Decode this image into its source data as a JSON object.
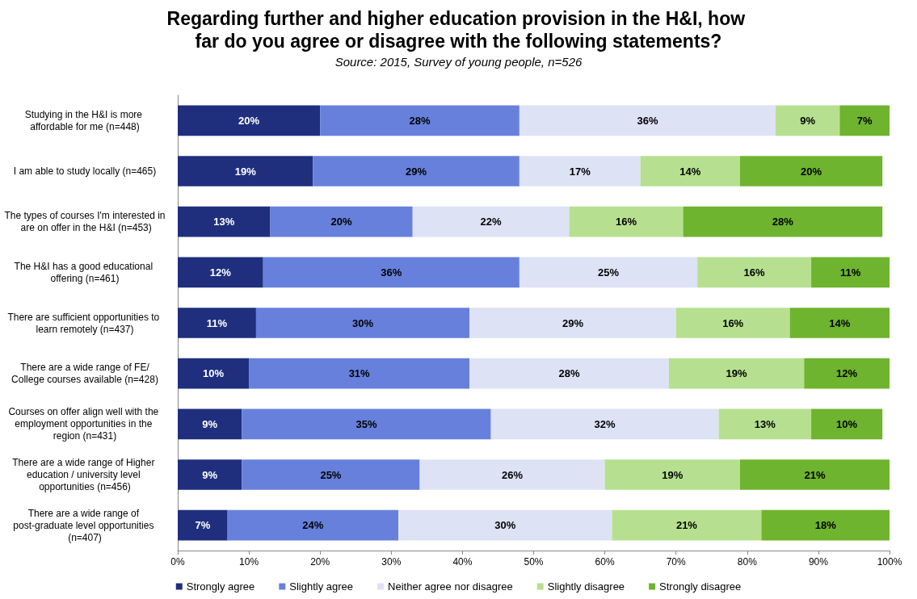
{
  "chart_data": {
    "type": "bar",
    "orientation": "horizontal",
    "stacked": true,
    "title": "Regarding further and higher education provision in the H&I, how far do you agree or disagree with the following statements?",
    "subtitle": "Source: 2015, Survey of young people, n=526",
    "categories": [
      "Studying in the H&I is more affordable for me (n=448)",
      "I am able to study locally (n=465)",
      "The types of courses I'm interested in are on offer in the H&I (n=453)",
      "The H&I has a good educational offering (n=461)",
      "There are sufficient opportunities to learn remotely (n=437)",
      "There are a wide range of FE/College courses available (n=428)",
      "Courses on offer align well with the employment opportunities in the region (n=431)",
      "There are a wide range of Higher education / university level opportunities (n=456)",
      "There are a wide range of post-graduate level opportunities (n=407)"
    ],
    "series": [
      {
        "name": "Strongly agree",
        "color": "#1f2f7e",
        "values": [
          20,
          19,
          13,
          12,
          11,
          10,
          9,
          9,
          7
        ],
        "value_labels": [
          "20%",
          "19%",
          "13%",
          "12%",
          "11%",
          "10%",
          "9%",
          "9%",
          "7%"
        ]
      },
      {
        "name": "Slightly agree",
        "color": "#6680dc",
        "values": [
          28,
          29,
          20,
          36,
          30,
          31,
          35,
          25,
          24
        ],
        "value_labels": [
          "28%",
          "29%",
          "20%",
          "36%",
          "30%",
          "31%",
          "35%",
          "25%",
          "24%"
        ]
      },
      {
        "name": "Neither agree nor disagree",
        "color": "#dde2f5",
        "values": [
          36,
          17,
          22,
          25,
          29,
          28,
          32,
          26,
          30
        ],
        "value_labels": [
          "36%",
          "17%",
          "22%",
          "25%",
          "29%",
          "28%",
          "32%",
          "26%",
          "30%"
        ]
      },
      {
        "name": "Slightly disagree",
        "color": "#b6e08f",
        "values": [
          9,
          14,
          16,
          16,
          16,
          19,
          13,
          19,
          21
        ],
        "value_labels": [
          "9%",
          "14%",
          "16%",
          "16%",
          "16%",
          "19%",
          "13%",
          "19%",
          "21%"
        ]
      },
      {
        "name": "Strongly disagree",
        "color": "#6eb42e",
        "values": [
          7,
          20,
          28,
          11,
          14,
          12,
          10,
          21,
          18
        ],
        "value_labels": [
          "7%",
          "20%",
          "28%",
          "11%",
          "14%",
          "12%",
          "10%",
          "21%",
          "18%"
        ]
      }
    ],
    "xlim": [
      0,
      100
    ],
    "xticks": [
      {
        "value": 0,
        "label": "0%"
      },
      {
        "value": 10,
        "label": "10%"
      },
      {
        "value": 20,
        "label": "20%"
      },
      {
        "value": 30,
        "label": "30%"
      },
      {
        "value": 40,
        "label": "40%"
      },
      {
        "value": 50,
        "label": "50%"
      },
      {
        "value": 60,
        "label": "60%"
      },
      {
        "value": 70,
        "label": "70%"
      },
      {
        "value": 80,
        "label": "80%"
      },
      {
        "value": 90,
        "label": "90%"
      },
      {
        "value": 100,
        "label": "100%"
      }
    ],
    "grid": false,
    "legend": "bottom"
  }
}
